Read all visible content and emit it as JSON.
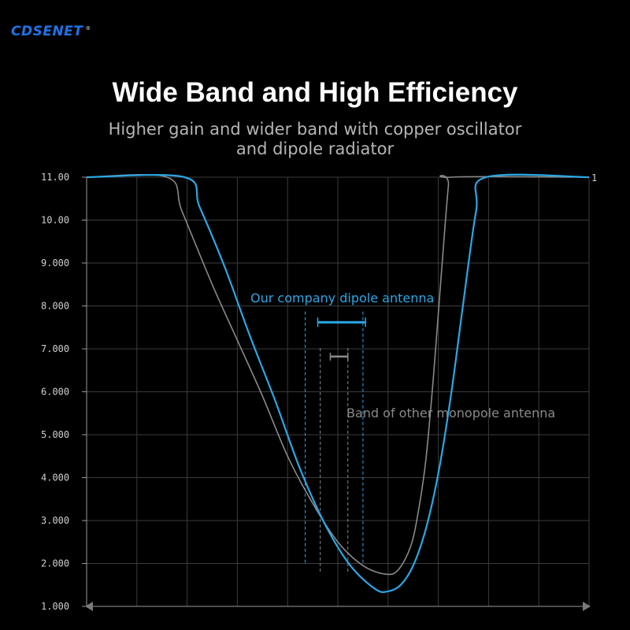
{
  "brand": {
    "name": "CDSENET",
    "mark": "®"
  },
  "header": {
    "title": "Wide Band and High Efficiency",
    "subtitle_line1": "Higher gain and wider band with copper oscillator",
    "subtitle_line2": "and dipole radiator"
  },
  "colors": {
    "background": "#000000",
    "dipole": "#2aa7e6",
    "monopole": "#8a8a8a",
    "grid": "#3c3c3c"
  },
  "chart_data": {
    "type": "line",
    "title": "",
    "xlabel": "",
    "ylabel": "",
    "ylim": [
      1,
      11
    ],
    "xlim": [
      0,
      20
    ],
    "grid": true,
    "y_ticks": [
      {
        "value": 11,
        "label": "11.00"
      },
      {
        "value": 10,
        "label": "10.00"
      },
      {
        "value": 9,
        "label": "9.000"
      },
      {
        "value": 8,
        "label": "8.000"
      },
      {
        "value": 7,
        "label": "7.000"
      },
      {
        "value": 6,
        "label": "6.000"
      },
      {
        "value": 5,
        "label": "5.000"
      },
      {
        "value": 4,
        "label": "4.000"
      },
      {
        "value": 3,
        "label": "3.000"
      },
      {
        "value": 2,
        "label": "2.000"
      },
      {
        "value": 1,
        "label": "1.000"
      }
    ],
    "right_marker": "1",
    "series": [
      {
        "key": "dipole",
        "color": "#2aa7e6",
        "points": [
          [
            0,
            11
          ],
          [
            3.9,
            11
          ],
          [
            4.5,
            10.3
          ],
          [
            5.5,
            8.9
          ],
          [
            6.5,
            7.3
          ],
          [
            7.5,
            5.8
          ],
          [
            8.5,
            4.2
          ],
          [
            9.5,
            2.9
          ],
          [
            10.5,
            1.95
          ],
          [
            11.5,
            1.4
          ],
          [
            12.0,
            1.35
          ],
          [
            12.5,
            1.5
          ],
          [
            13.0,
            1.95
          ],
          [
            13.5,
            2.8
          ],
          [
            14.0,
            4.1
          ],
          [
            14.5,
            5.9
          ],
          [
            15.0,
            8.1
          ],
          [
            15.5,
            10.2
          ],
          [
            15.9,
            11
          ],
          [
            20,
            11
          ]
        ]
      },
      {
        "key": "monopole",
        "color": "#8a8a8a",
        "points": [
          [
            0,
            11
          ],
          [
            3.2,
            11
          ],
          [
            3.8,
            10.2
          ],
          [
            5.0,
            8.5
          ],
          [
            6.0,
            7.2
          ],
          [
            7.0,
            5.9
          ],
          [
            8.0,
            4.5
          ],
          [
            9.0,
            3.4
          ],
          [
            10.0,
            2.5
          ],
          [
            11.0,
            1.95
          ],
          [
            11.9,
            1.75
          ],
          [
            12.4,
            1.85
          ],
          [
            12.9,
            2.4
          ],
          [
            13.2,
            3.2
          ],
          [
            13.5,
            4.4
          ],
          [
            13.8,
            6.3
          ],
          [
            14.1,
            8.6
          ],
          [
            14.4,
            10.8
          ],
          [
            14.5,
            11
          ],
          [
            20,
            11
          ]
        ]
      }
    ],
    "bands": {
      "dipole": {
        "from": 8.7,
        "to": 11.0,
        "marker_x": [
          9.2,
          11.1
        ],
        "marker_y": 7.62
      },
      "monopole": {
        "from": 9.3,
        "to": 10.4,
        "marker_x": [
          9.7,
          10.4
        ],
        "marker_y": 6.82
      }
    },
    "annotations": {
      "dipole_label": "Our company dipole antenna",
      "monopole_label": "Band of other monopole antenna"
    }
  }
}
